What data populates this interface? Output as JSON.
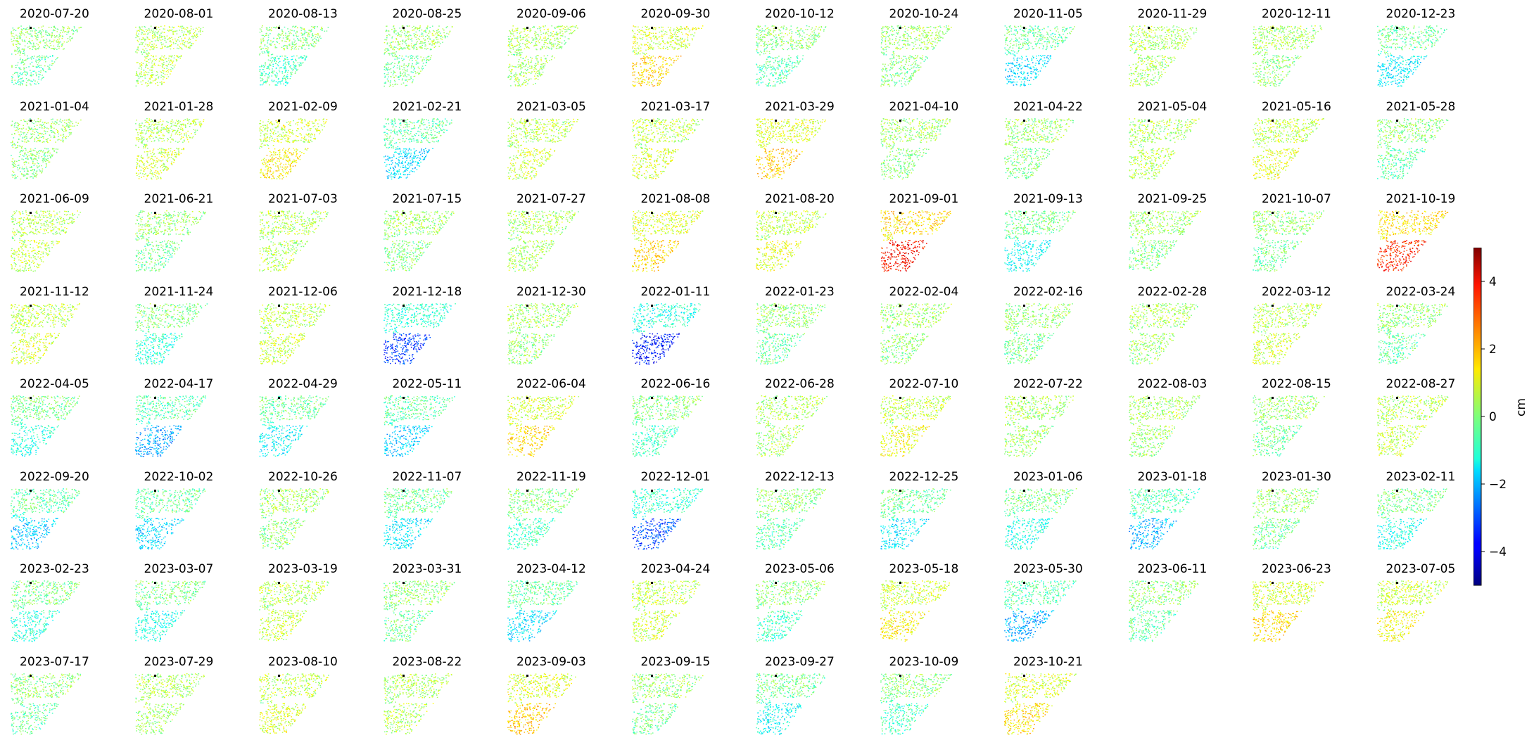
{
  "chart_data": {
    "type": "heatmap",
    "layout": "small-multiples",
    "columns": 12,
    "panels": [
      {
        "date": "2020-07-20",
        "mean_cm": -0.3
      },
      {
        "date": "2020-08-01",
        "mean_cm": 0.6
      },
      {
        "date": "2020-08-13",
        "mean_cm": -0.6
      },
      {
        "date": "2020-08-25",
        "mean_cm": -0.1
      },
      {
        "date": "2020-09-06",
        "mean_cm": 0.4
      },
      {
        "date": "2020-09-30",
        "mean_cm": 1.6
      },
      {
        "date": "2020-10-12",
        "mean_cm": -0.4
      },
      {
        "date": "2020-10-24",
        "mean_cm": 0.0
      },
      {
        "date": "2020-11-05",
        "mean_cm": -1.6
      },
      {
        "date": "2020-11-29",
        "mean_cm": 0.4
      },
      {
        "date": "2020-12-11",
        "mean_cm": 0.2
      },
      {
        "date": "2020-12-23",
        "mean_cm": -1.4
      },
      {
        "date": "2021-01-04",
        "mean_cm": 0.0
      },
      {
        "date": "2021-01-28",
        "mean_cm": 0.8
      },
      {
        "date": "2021-02-09",
        "mean_cm": 1.4
      },
      {
        "date": "2021-02-21",
        "mean_cm": -1.6
      },
      {
        "date": "2021-03-05",
        "mean_cm": 0.8
      },
      {
        "date": "2021-03-17",
        "mean_cm": 0.9
      },
      {
        "date": "2021-03-29",
        "mean_cm": 1.8
      },
      {
        "date": "2021-04-10",
        "mean_cm": 0.1
      },
      {
        "date": "2021-04-22",
        "mean_cm": 0.0
      },
      {
        "date": "2021-05-04",
        "mean_cm": 0.5
      },
      {
        "date": "2021-05-16",
        "mean_cm": 1.0
      },
      {
        "date": "2021-05-28",
        "mean_cm": -0.3
      },
      {
        "date": "2021-06-09",
        "mean_cm": 0.6
      },
      {
        "date": "2021-06-21",
        "mean_cm": -0.2
      },
      {
        "date": "2021-07-03",
        "mean_cm": 0.5
      },
      {
        "date": "2021-07-15",
        "mean_cm": 0.0
      },
      {
        "date": "2021-07-27",
        "mean_cm": 0.4
      },
      {
        "date": "2021-08-08",
        "mean_cm": 1.7
      },
      {
        "date": "2021-08-20",
        "mean_cm": 1.0
      },
      {
        "date": "2021-09-01",
        "mean_cm": 3.6
      },
      {
        "date": "2021-09-13",
        "mean_cm": -1.2
      },
      {
        "date": "2021-09-25",
        "mean_cm": 0.0
      },
      {
        "date": "2021-10-07",
        "mean_cm": -0.2
      },
      {
        "date": "2021-10-19",
        "mean_cm": 3.4
      },
      {
        "date": "2021-11-12",
        "mean_cm": 0.9
      },
      {
        "date": "2021-11-24",
        "mean_cm": -0.8
      },
      {
        "date": "2021-12-06",
        "mean_cm": 0.7
      },
      {
        "date": "2021-12-18",
        "mean_cm": -3.2
      },
      {
        "date": "2021-12-30",
        "mean_cm": 0.2
      },
      {
        "date": "2022-01-11",
        "mean_cm": -3.6
      },
      {
        "date": "2022-01-23",
        "mean_cm": -0.2
      },
      {
        "date": "2022-02-04",
        "mean_cm": 0.1
      },
      {
        "date": "2022-02-16",
        "mean_cm": -0.1
      },
      {
        "date": "2022-02-28",
        "mean_cm": 0.3
      },
      {
        "date": "2022-03-12",
        "mean_cm": 0.8
      },
      {
        "date": "2022-03-24",
        "mean_cm": -0.3
      },
      {
        "date": "2022-04-05",
        "mean_cm": -1.0
      },
      {
        "date": "2022-04-17",
        "mean_cm": -2.2
      },
      {
        "date": "2022-04-29",
        "mean_cm": -1.3
      },
      {
        "date": "2022-05-11",
        "mean_cm": -1.8
      },
      {
        "date": "2022-06-04",
        "mean_cm": 1.6
      },
      {
        "date": "2022-06-16",
        "mean_cm": -0.6
      },
      {
        "date": "2022-06-28",
        "mean_cm": 0.4
      },
      {
        "date": "2022-07-10",
        "mean_cm": 1.1
      },
      {
        "date": "2022-07-22",
        "mean_cm": 0.3
      },
      {
        "date": "2022-08-03",
        "mean_cm": 0.3
      },
      {
        "date": "2022-08-15",
        "mean_cm": -0.2
      },
      {
        "date": "2022-08-27",
        "mean_cm": 0.7
      },
      {
        "date": "2022-09-20",
        "mean_cm": -1.8
      },
      {
        "date": "2022-10-02",
        "mean_cm": -1.6
      },
      {
        "date": "2022-10-26",
        "mean_cm": 0.1
      },
      {
        "date": "2022-11-07",
        "mean_cm": -1.4
      },
      {
        "date": "2022-11-19",
        "mean_cm": -0.6
      },
      {
        "date": "2022-12-01",
        "mean_cm": -3.0
      },
      {
        "date": "2022-12-13",
        "mean_cm": -0.4
      },
      {
        "date": "2022-12-25",
        "mean_cm": -1.4
      },
      {
        "date": "2023-01-06",
        "mean_cm": -1.0
      },
      {
        "date": "2023-01-18",
        "mean_cm": -2.0
      },
      {
        "date": "2023-01-30",
        "mean_cm": -0.2
      },
      {
        "date": "2023-02-11",
        "mean_cm": -1.0
      },
      {
        "date": "2023-02-23",
        "mean_cm": -0.9
      },
      {
        "date": "2023-03-07",
        "mean_cm": -1.0
      },
      {
        "date": "2023-03-19",
        "mean_cm": 0.7
      },
      {
        "date": "2023-03-31",
        "mean_cm": -0.2
      },
      {
        "date": "2023-04-12",
        "mean_cm": -1.5
      },
      {
        "date": "2023-04-24",
        "mean_cm": 0.8
      },
      {
        "date": "2023-05-06",
        "mean_cm": -0.6
      },
      {
        "date": "2023-05-18",
        "mean_cm": 1.3
      },
      {
        "date": "2023-05-30",
        "mean_cm": -2.0
      },
      {
        "date": "2023-06-11",
        "mean_cm": -0.3
      },
      {
        "date": "2023-06-23",
        "mean_cm": 1.6
      },
      {
        "date": "2023-07-05",
        "mean_cm": 1.2
      },
      {
        "date": "2023-07-17",
        "mean_cm": -0.3
      },
      {
        "date": "2023-07-29",
        "mean_cm": 0.3
      },
      {
        "date": "2023-08-10",
        "mean_cm": 0.9
      },
      {
        "date": "2023-08-22",
        "mean_cm": 0.5
      },
      {
        "date": "2023-09-03",
        "mean_cm": 1.8
      },
      {
        "date": "2023-09-15",
        "mean_cm": -0.2
      },
      {
        "date": "2023-09-27",
        "mean_cm": -1.2
      },
      {
        "date": "2023-10-09",
        "mean_cm": -0.6
      },
      {
        "date": "2023-10-21",
        "mean_cm": 1.5
      }
    ],
    "colorbar": {
      "label": "cm",
      "colormap": "jet",
      "range": [
        -5,
        5
      ],
      "ticks": [
        4,
        2,
        0,
        -2,
        -4
      ],
      "tick_labels": [
        "4",
        "2",
        "0",
        "−2",
        "−4"
      ]
    }
  }
}
